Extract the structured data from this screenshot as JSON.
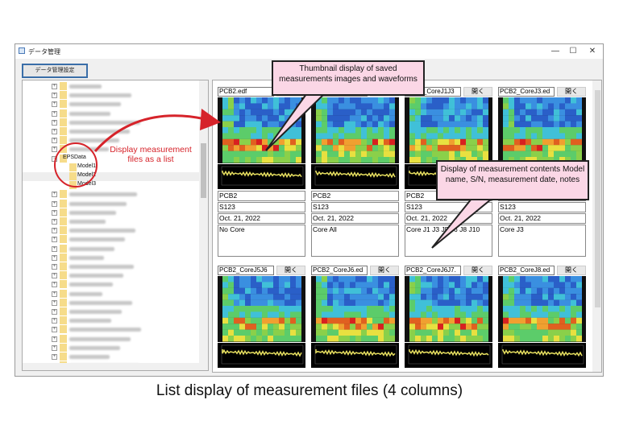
{
  "window": {
    "title": "データ管理",
    "minimize": "—",
    "maximize": "☐",
    "close": "✕"
  },
  "toolbar": {
    "settings_button": "データ管理設定"
  },
  "tree": {
    "expanded_folder": "EPSData",
    "children": [
      "Model1",
      "Model2",
      "Model3"
    ]
  },
  "cards": [
    {
      "file": "PCB2.edf",
      "open": "開く",
      "model": "PCB2",
      "sn": "S123",
      "date": "Oct. 21, 2022",
      "note": "No Core"
    },
    {
      "file": "PCB2_CoreAll.edf",
      "open": "開く",
      "model": "PCB2",
      "sn": "S123",
      "date": "Oct. 21, 2022",
      "note": "Core All"
    },
    {
      "file": "PCB2_CoreJ1J3",
      "open": "開く",
      "model": "PCB2",
      "sn": "S123",
      "date": "Oct. 21, 2022",
      "note": "Core J1 J3 J5 J6 J8 J10"
    },
    {
      "file": "PCB2_CoreJ3.ed",
      "open": "開く",
      "model": "PCB2",
      "sn": "S123",
      "date": "Oct. 21, 2022",
      "note": "Core J3"
    },
    {
      "file": "PCB2_CoreJ5J6",
      "open": "開く"
    },
    {
      "file": "PCB2_CoreJ6.ed",
      "open": "開く"
    },
    {
      "file": "PCB2_CoreJ6J7.",
      "open": "開く"
    },
    {
      "file": "PCB2_CoreJ8.ed",
      "open": "開く"
    }
  ],
  "annotations": {
    "thumbnail": "Thumbnail display of saved measurements images and waveforms",
    "contents": "Display of measurement contents Model name, S/N, measurement date, notes",
    "list": "Display measurement files as a list"
  },
  "caption": "List display of measurement files (4 columns)",
  "colors": {
    "accent_red": "#d6232a",
    "callout_bg": "#fbd7e6",
    "waveform": "#e8e060"
  }
}
